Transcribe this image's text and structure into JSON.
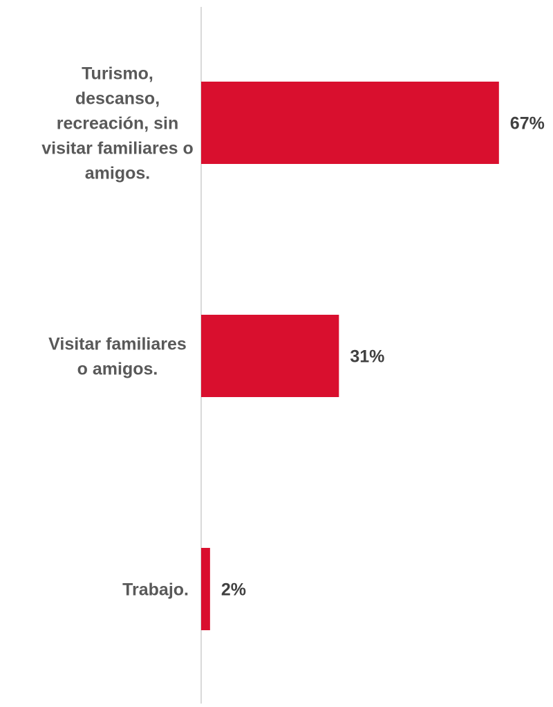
{
  "chart_data": {
    "type": "bar",
    "orientation": "horizontal",
    "categories": [
      "Turismo, descanso, recreación, sin visitar familiares o amigos.",
      "Visitar familiares o amigos.",
      "Trabajo."
    ],
    "category_lines": [
      [
        "Turismo,",
        "descanso,",
        "recreación, sin",
        "visitar familiares o",
        "amigos."
      ],
      [
        "Visitar familiares",
        "o amigos."
      ],
      [
        "Trabajo."
      ]
    ],
    "values": [
      67,
      31,
      2
    ],
    "data_labels": [
      "67%",
      "31%",
      "2%"
    ],
    "xlim": [
      0,
      100
    ],
    "grid": false,
    "legend": "none"
  },
  "colors": {
    "bar": "#d90f2e",
    "label_text": "#595959",
    "value_text": "#404040",
    "axis": "#d9d9d9"
  }
}
